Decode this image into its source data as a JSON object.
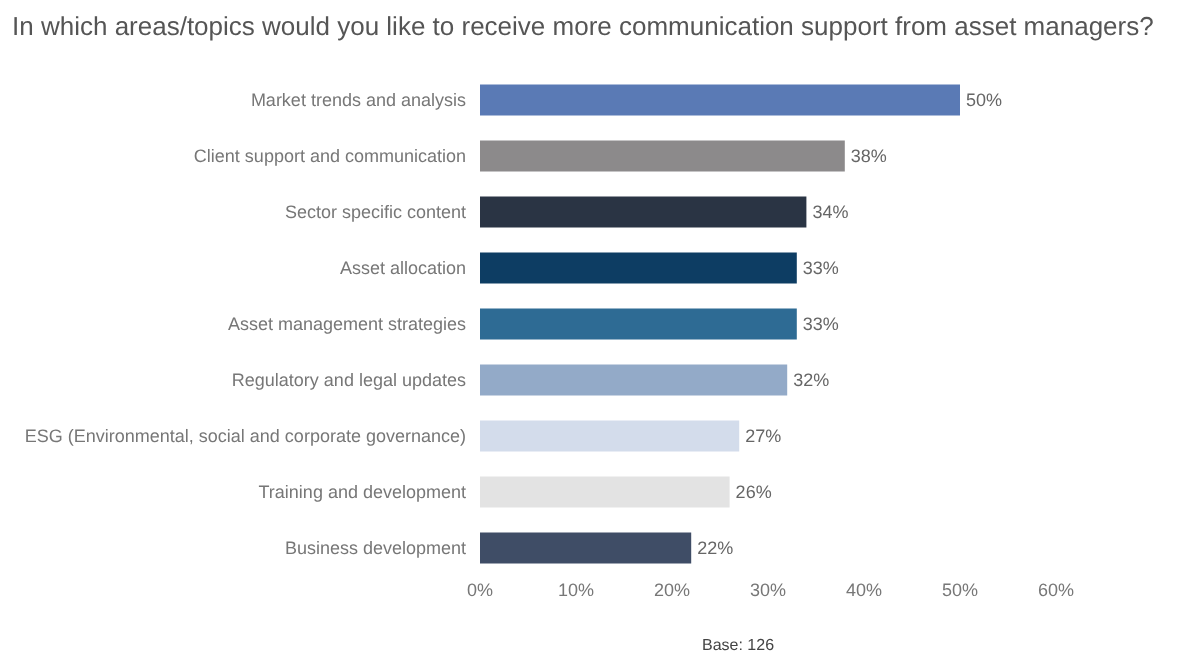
{
  "chart_data": {
    "type": "bar",
    "orientation": "horizontal",
    "title": "In which areas/topics would you like to receive more communication support from asset managers?",
    "categories": [
      "Market trends and analysis",
      "Client support and communication",
      "Sector specific content",
      "Asset allocation",
      "Asset management strategies",
      "Regulatory and legal updates",
      "ESG (Environmental, social and corporate governance)",
      "Training and development",
      "Business development"
    ],
    "values": [
      50,
      38,
      34,
      33,
      33,
      32,
      27,
      26,
      22
    ],
    "value_labels": [
      "50%",
      "38%",
      "34%",
      "33%",
      "33%",
      "32%",
      "27%",
      "26%",
      "22%"
    ],
    "colors": [
      "#5a7ab5",
      "#8c8a8b",
      "#2a3444",
      "#0d3d63",
      "#2e6b94",
      "#93aac8",
      "#d3dceb",
      "#e3e3e3",
      "#3f4d66"
    ],
    "xlim": [
      0,
      60
    ],
    "xticks": [
      {
        "value": 0,
        "label": "0%"
      },
      {
        "value": 10,
        "label": "10%"
      },
      {
        "value": 20,
        "label": "20%"
      },
      {
        "value": 30,
        "label": "30%"
      },
      {
        "value": 40,
        "label": "40%"
      },
      {
        "value": 50,
        "label": "50%"
      },
      {
        "value": 60,
        "label": "60%"
      }
    ],
    "grid": false,
    "annotations": [
      "Base: 126"
    ]
  }
}
